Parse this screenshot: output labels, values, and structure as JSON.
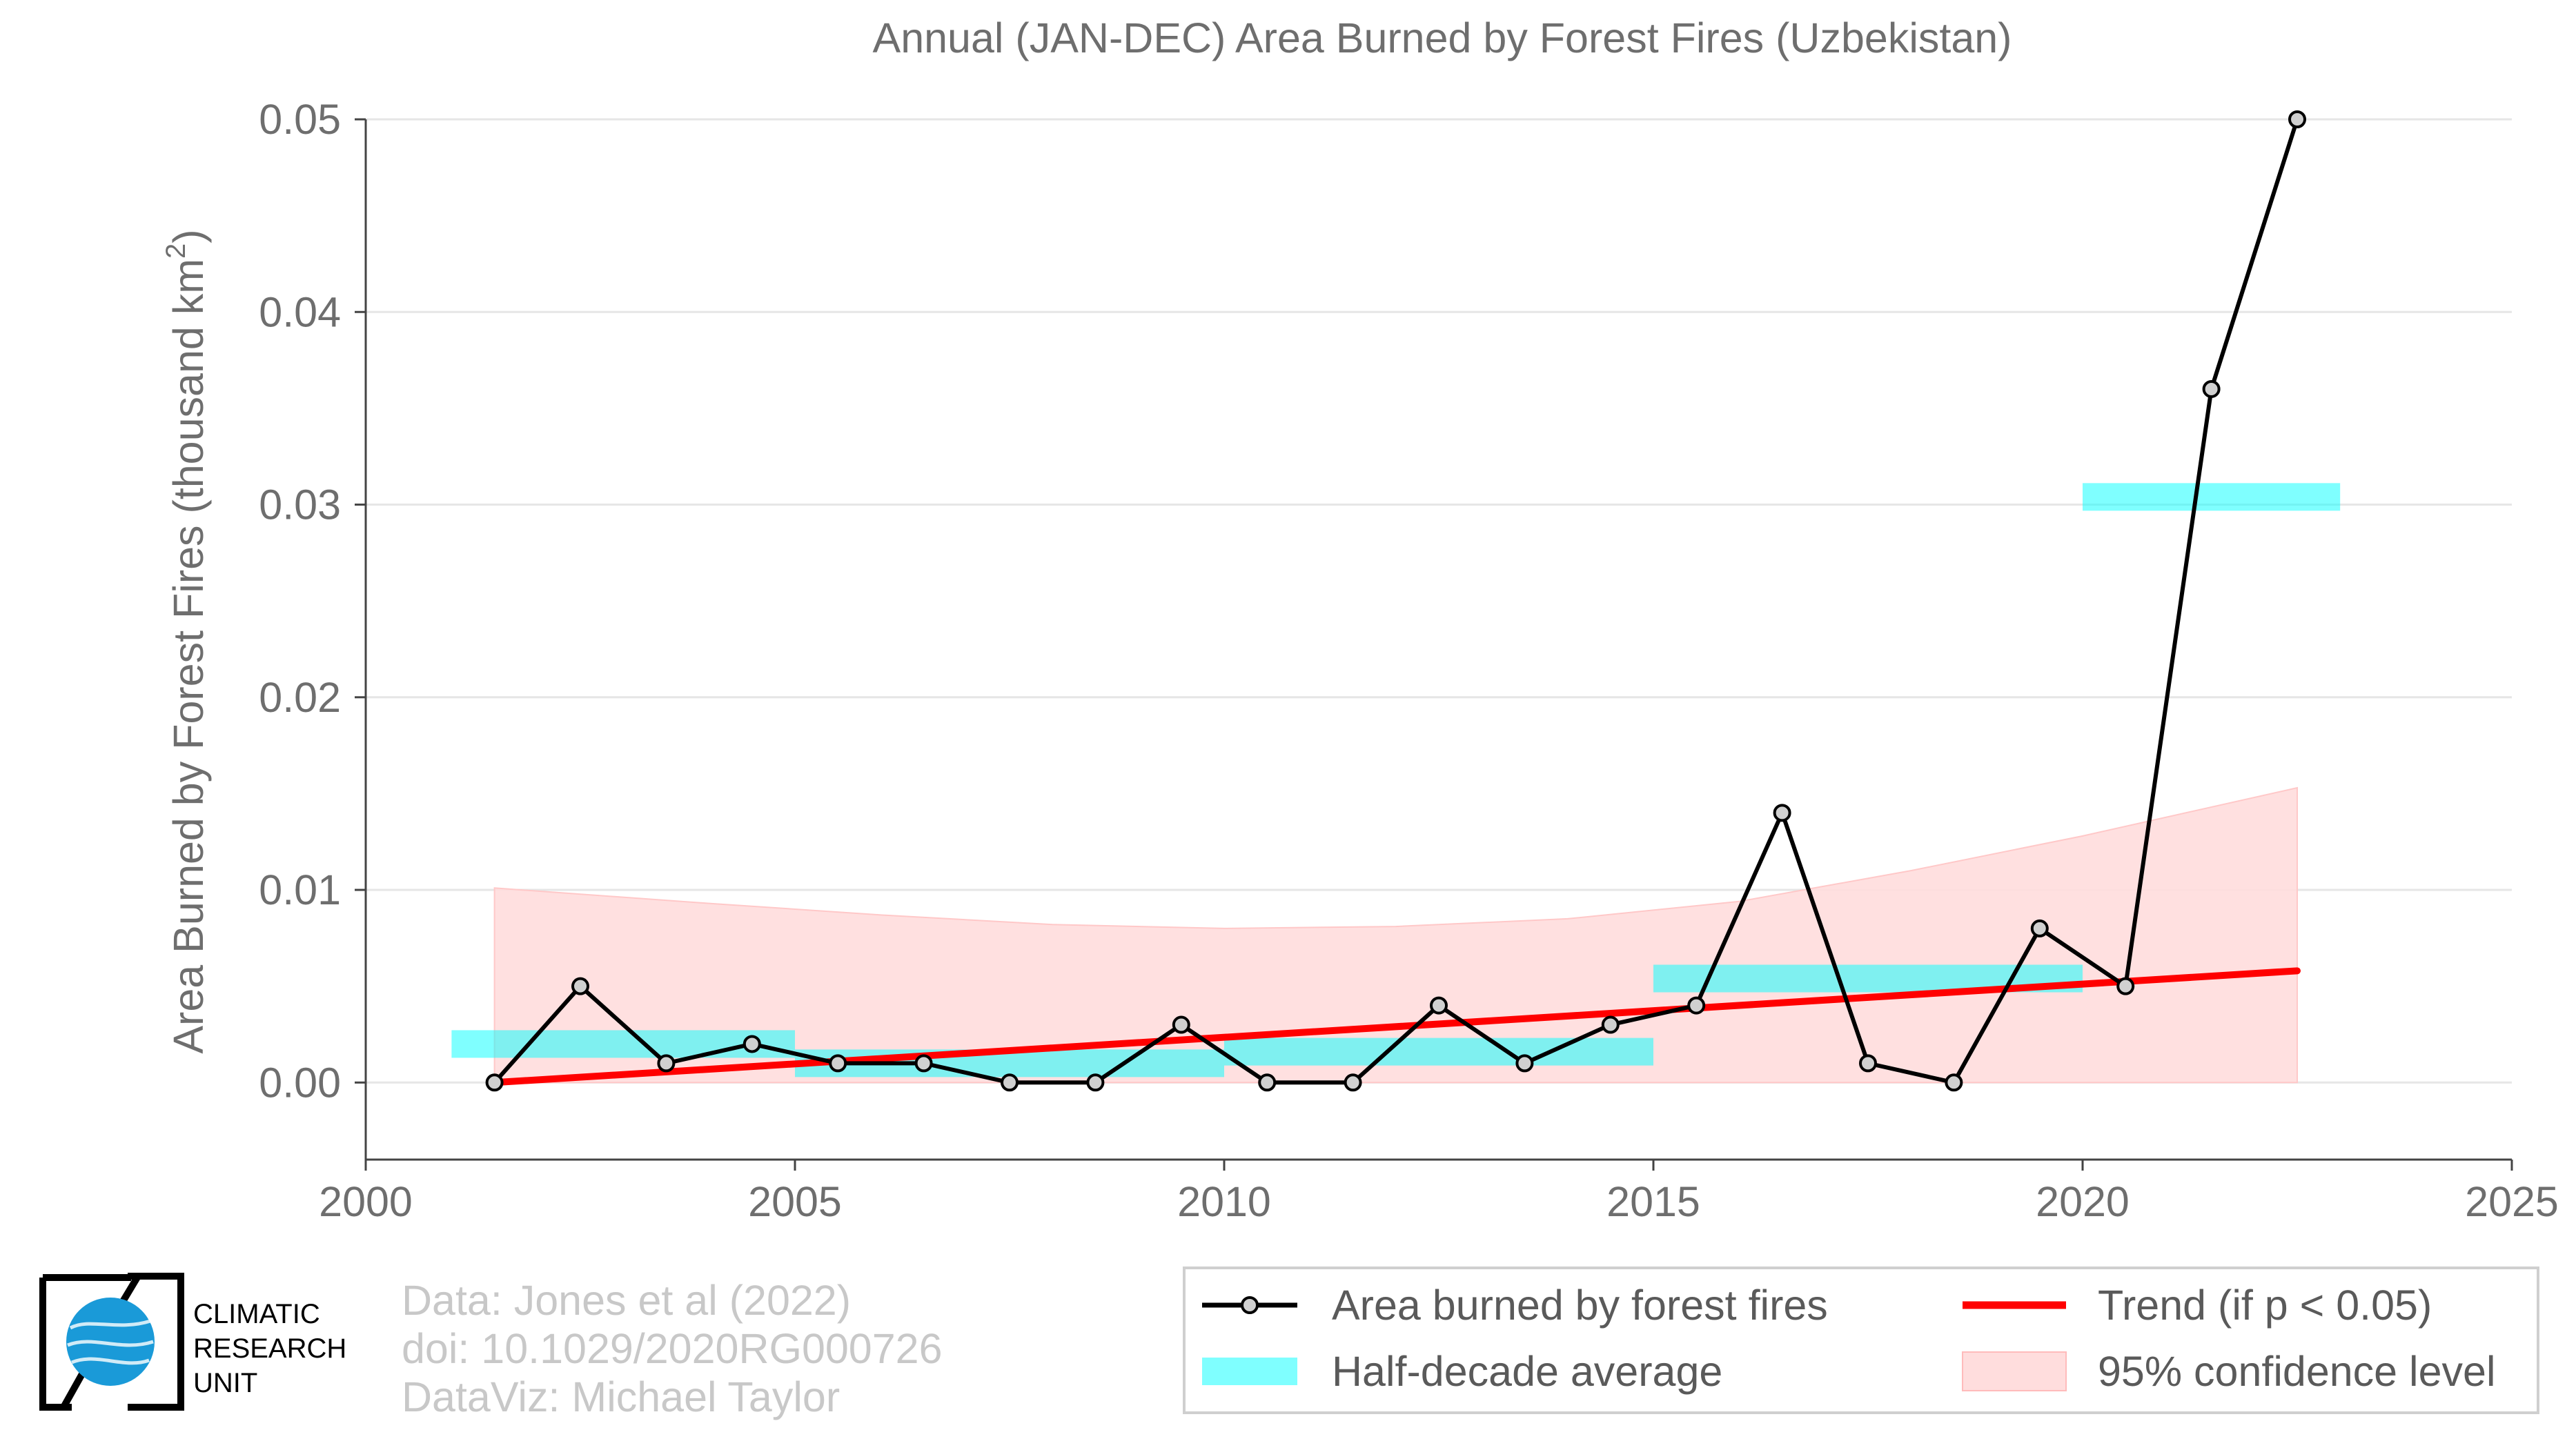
{
  "chart_data": {
    "type": "line",
    "title": "Annual (JAN-DEC) Area Burned by Forest Fires (Uzbekistan)",
    "xlabel": "",
    "ylabel": "Area Burned by Forest Fires (thousand km",
    "ylabel_sup": "2",
    "ylabel_end": ")",
    "xlim": [
      2000,
      2025
    ],
    "ylim": [
      -0.004,
      0.05
    ],
    "x_ticks": [
      2000,
      2005,
      2010,
      2015,
      2020,
      2025
    ],
    "x_tick_labels": [
      "2000",
      "2005",
      "2010",
      "2015",
      "2020",
      "2025"
    ],
    "y_ticks": [
      0.0,
      0.01,
      0.02,
      0.03,
      0.04,
      0.05
    ],
    "y_tick_labels": [
      "0.00",
      "0.01",
      "0.02",
      "0.03",
      "0.04",
      "0.05"
    ],
    "grid": true,
    "series": [
      {
        "name": "Area burned by forest fires",
        "type": "line-markers",
        "color": "#000000",
        "marker_fill": "#d0d0d0",
        "x": [
          2001.5,
          2002.5,
          2003.5,
          2004.5,
          2005.5,
          2006.5,
          2007.5,
          2008.5,
          2009.5,
          2010.5,
          2011.5,
          2012.5,
          2013.5,
          2014.5,
          2015.5,
          2016.5,
          2017.5,
          2018.5,
          2019.5,
          2020.5,
          2021.5,
          2022.5
        ],
        "y": [
          0.0,
          0.005,
          0.001,
          0.002,
          0.001,
          0.001,
          0.0,
          0.0,
          0.003,
          0.0,
          0.0,
          0.004,
          0.001,
          0.003,
          0.004,
          0.014,
          0.001,
          0.0,
          0.008,
          0.005,
          0.036,
          0.05
        ]
      },
      {
        "name": "Half-decade average",
        "type": "bars",
        "color": "#00ffff",
        "segments": [
          {
            "x0": 2001,
            "x1": 2005,
            "y": 0.002
          },
          {
            "x0": 2005,
            "x1": 2010,
            "y": 0.001
          },
          {
            "x0": 2010,
            "x1": 2015,
            "y": 0.0016
          },
          {
            "x0": 2015,
            "x1": 2020,
            "y": 0.0054
          },
          {
            "x0": 2020,
            "x1": 2023,
            "y": 0.0304
          }
        ]
      },
      {
        "name": "Trend (if p < 0.05)",
        "type": "line",
        "color": "#ff0000",
        "x": [
          2001.5,
          2022.5
        ],
        "y": [
          0.0,
          0.0058
        ]
      },
      {
        "name": "95% confidence level",
        "type": "band",
        "color": "#ffcccc",
        "x": [
          2001.5,
          2004,
          2006,
          2008,
          2010,
          2012,
          2014,
          2016,
          2018,
          2020,
          2022.5
        ],
        "upper": [
          0.0101,
          0.0093,
          0.0087,
          0.0082,
          0.008,
          0.0081,
          0.0085,
          0.0094,
          0.011,
          0.0128,
          0.0153
        ],
        "lower": [
          0,
          0,
          0,
          0,
          0,
          0,
          0,
          0,
          0,
          0,
          0
        ]
      }
    ],
    "legend": {
      "placement": "bottom-right",
      "items": [
        {
          "label": "Area burned by forest fires",
          "kind": "line-marker"
        },
        {
          "label": "Trend (if p < 0.05)",
          "kind": "red-line"
        },
        {
          "label": "Half-decade average",
          "kind": "cyan-bar"
        },
        {
          "label": "95% confidence level",
          "kind": "pink-box"
        }
      ]
    }
  },
  "credits": {
    "line1": "Data: Jones et al (2022)",
    "line2": "doi: 10.1029/2020RG000726",
    "line3": "DataViz: Michael Taylor"
  },
  "logo": {
    "line1": "CLIMATIC",
    "line2": "RESEARCH",
    "line3": "UNIT"
  }
}
